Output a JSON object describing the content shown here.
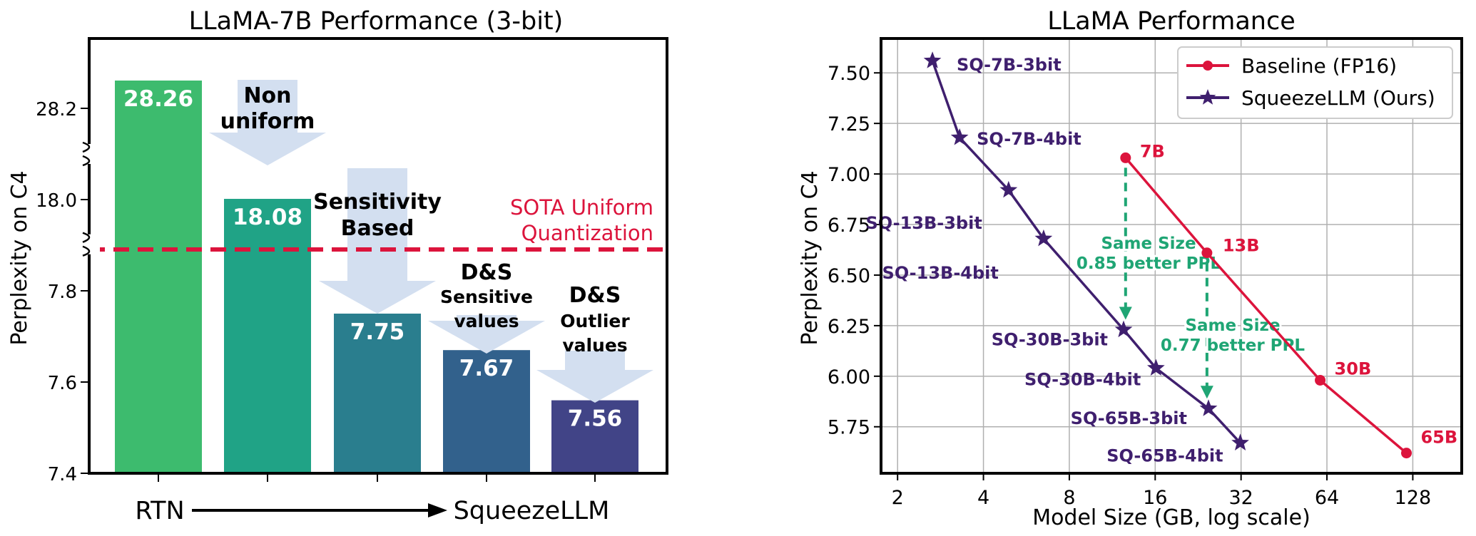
{
  "chart_data": [
    {
      "type": "bar",
      "title": "LLaMA-7B Performance (3-bit)",
      "ylabel": "Perplexity on C4",
      "ylim": [
        7.4,
        28.26
      ],
      "axis_break": "broken y-axis between 7.8 and 18.0 and between 18.0 and 28.2",
      "yticks": [
        "28.2",
        "18.0",
        "7.8",
        "7.6",
        "7.4"
      ],
      "categories": [
        "RTN",
        "Non uniform",
        "Sensitivity Based",
        "D&S Sensitive values",
        "D&S Outlier values"
      ],
      "values": [
        28.26,
        18.08,
        7.75,
        7.67,
        7.56
      ],
      "value_labels": [
        "28.26",
        "18.08",
        "7.75",
        "7.67",
        "7.56"
      ],
      "colors": [
        "#3dbb6e",
        "#20a386",
        "#2a7e8e",
        "#32618c",
        "#414487"
      ],
      "arrow_labels": [
        [
          "Non",
          "uniform"
        ],
        [
          "Sensitivity",
          "Based"
        ],
        [
          "D&S"
        ],
        [
          "Sensitive",
          "values"
        ],
        [
          "D&S",
          "Outlier",
          "values"
        ]
      ],
      "reference_line": {
        "label_lines": [
          "SOTA Uniform",
          "Quantization"
        ],
        "color": "#dc143c",
        "style": "dashed"
      },
      "xaxis_start": "RTN",
      "xaxis_end": "SqueezeLLM"
    },
    {
      "type": "line",
      "title": "LLaMA Performance",
      "xlabel": "Model Size (GB, log scale)",
      "ylabel": "Perplexity on C4",
      "xscale": "log",
      "xticks": [
        "2",
        "4",
        "8",
        "16",
        "32",
        "64",
        "128"
      ],
      "yticks": [
        "5.75",
        "6.00",
        "6.25",
        "6.50",
        "6.75",
        "7.00",
        "7.25",
        "7.50"
      ],
      "xlim": [
        1.75,
        190
      ],
      "ylim": [
        5.52,
        7.67
      ],
      "grid": true,
      "legend_position": "top-right",
      "series": [
        {
          "name": "Baseline (FP16)",
          "color": "#dc143c",
          "marker": "circle",
          "x": [
            12.6,
            24.3,
            60.6,
            121.6
          ],
          "y": [
            7.08,
            6.61,
            5.98,
            5.62
          ],
          "labels": [
            "7B",
            "13B",
            "30B",
            "65B"
          ]
        },
        {
          "name": "SqueezeLLM (Ours)",
          "color": "#3f1f6e",
          "marker": "star",
          "x": [
            2.65,
            3.3,
            4.9,
            6.5,
            12.4,
            16.1,
            24.6,
            31.8
          ],
          "y": [
            7.56,
            7.18,
            6.92,
            6.68,
            6.23,
            6.04,
            5.84,
            5.67
          ],
          "labels": [
            "SQ-7B-3bit",
            "SQ-7B-4bit",
            "SQ-13B-3bit",
            "SQ-13B-4bit",
            "SQ-30B-3bit",
            "SQ-30B-4bit",
            "SQ-65B-3bit",
            "SQ-65B-4bit"
          ]
        }
      ],
      "annotations": [
        {
          "lines": [
            "Same Size",
            "0.85 better PPL"
          ],
          "color": "#1fa574"
        },
        {
          "lines": [
            "Same Size",
            "0.77 better PPL"
          ],
          "color": "#1fa574"
        }
      ]
    }
  ]
}
